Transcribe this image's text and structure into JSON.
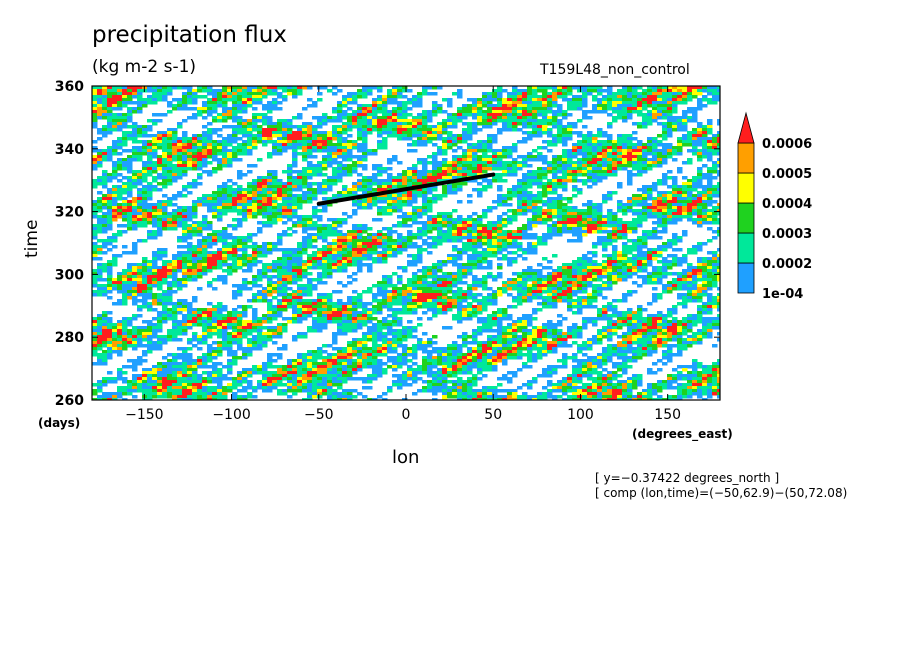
{
  "chart_data": {
    "type": "heatmap",
    "title": "precipitation flux",
    "subtitle": "(kg m-2 s-1)",
    "run_label": "T159L48_non_control",
    "xlabel": "lon",
    "ylabel": "time",
    "x_units": "(degrees_east)",
    "y_units": "(days)",
    "xlim": [
      -180,
      180
    ],
    "ylim": [
      260,
      360
    ],
    "x_ticks": [
      -150,
      -100,
      -50,
      0,
      50,
      100,
      150
    ],
    "x_tick_labels": [
      "−150",
      "−100",
      "−50",
      "0",
      "50",
      "100",
      "150"
    ],
    "y_ticks": [
      260,
      280,
      300,
      320,
      340,
      360
    ],
    "y_tick_labels": [
      "260",
      "280",
      "300",
      "320",
      "340",
      "360"
    ],
    "colorbar": {
      "levels": [
        "1e-04",
        "0.0002",
        "0.0003",
        "0.0004",
        "0.0005",
        "0.0006"
      ],
      "colors": [
        "#1fa0ff",
        "#00e89a",
        "#1fd21f",
        "#ffff00",
        "#ff9f00",
        "#ff1e1e"
      ],
      "extend": "max"
    },
    "composite_line": {
      "lon": [
        -50,
        50
      ],
      "time": [
        322.5,
        331.8
      ]
    },
    "annotations": [
      "[ y=−0.37422 degrees_north ]",
      "[ comp (lon,time)=(−50,62.9)−(50,72.08)"
    ]
  }
}
